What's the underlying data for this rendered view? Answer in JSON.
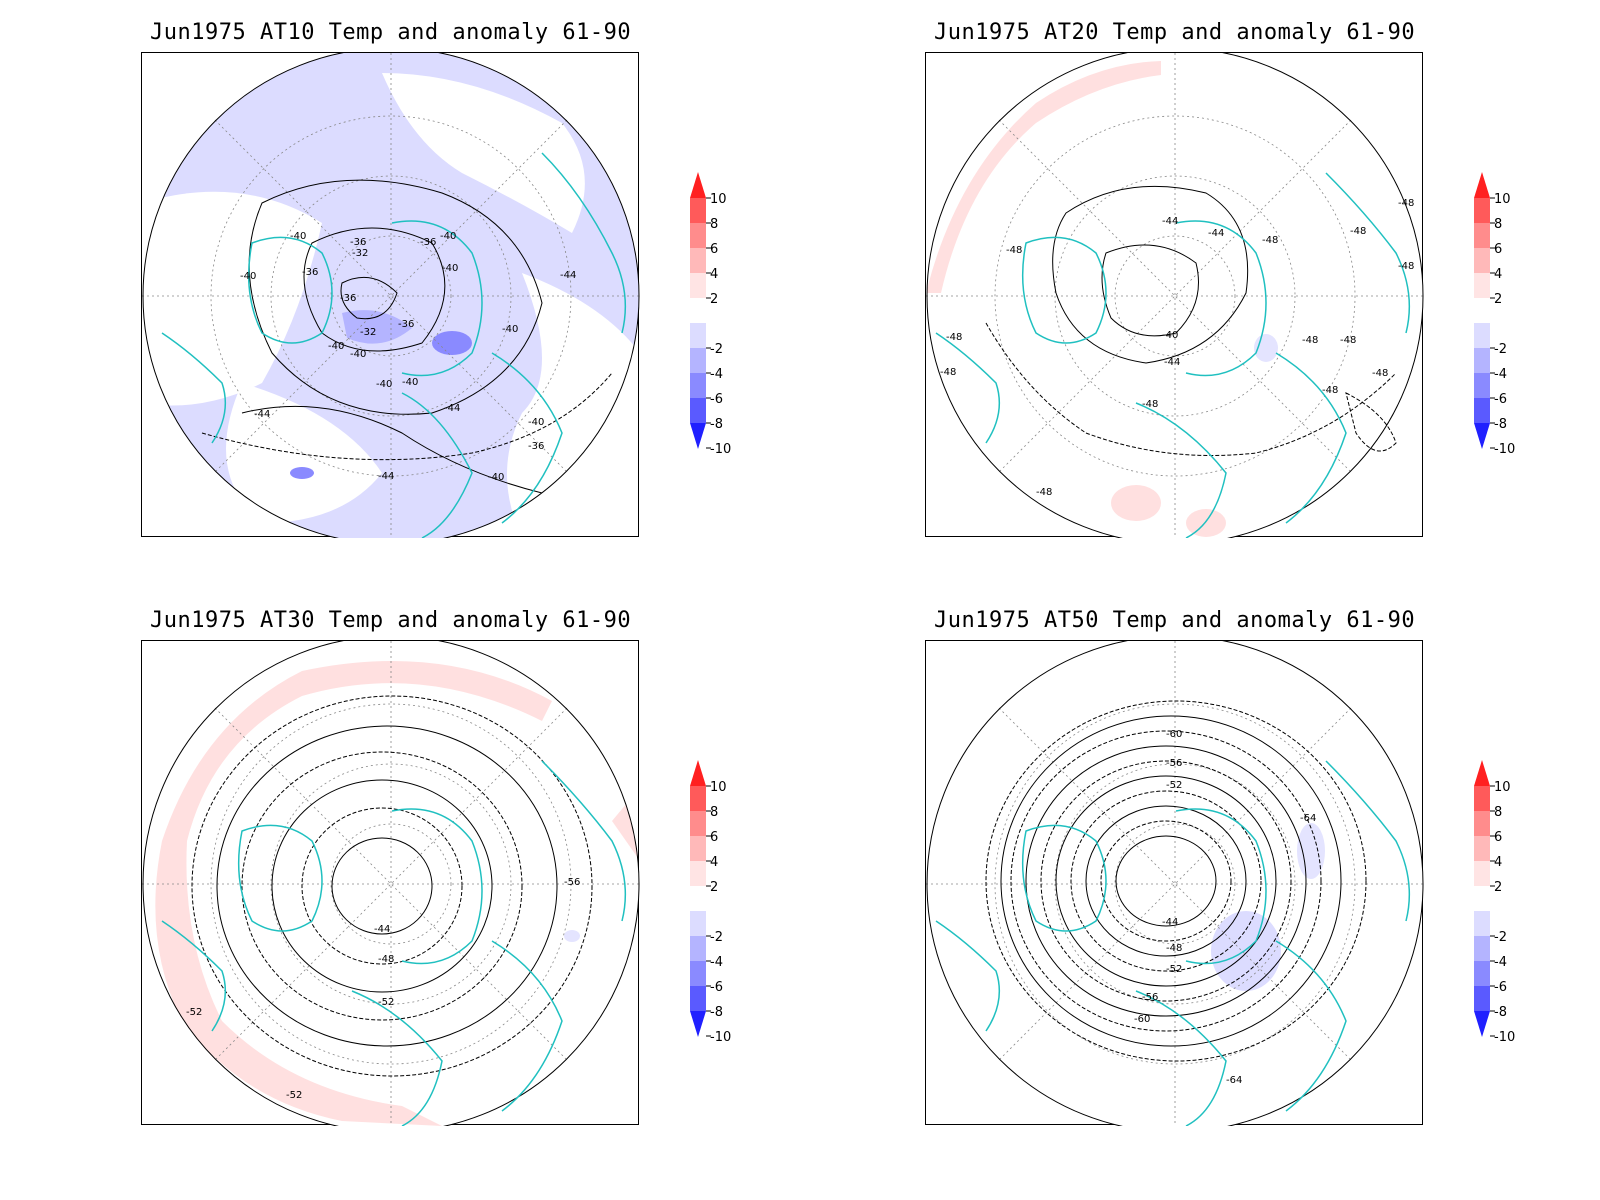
{
  "panels": [
    {
      "title": "Jun1975 AT10 Temp and anomaly 61-90",
      "contour_labels": [
        "-40",
        "-36",
        "-32",
        "-36",
        "-40",
        "-40",
        "-36",
        "-40",
        "-36",
        "-32",
        "-36",
        "-40",
        "-40",
        "-40",
        "-40",
        "-44",
        "-40",
        "-44",
        "-40",
        "-36",
        "-44",
        "-40",
        "-44"
      ]
    },
    {
      "title": "Jun1975 AT20 Temp and anomaly 61-90",
      "contour_labels": [
        "-44",
        "-44",
        "-48",
        "-48",
        "-48",
        "-48",
        "-48",
        "-40",
        "-44",
        "-48",
        "-48",
        "-48",
        "-48",
        "-48",
        "-48",
        "-48",
        "-48"
      ]
    },
    {
      "title": "Jun1975 AT30 Temp and anomaly 61-90",
      "contour_labels": [
        "-56",
        "-44",
        "-48",
        "-52",
        "-52",
        "-52"
      ]
    },
    {
      "title": "Jun1975 AT50 Temp and anomaly 61-90",
      "contour_labels": [
        "-60",
        "-56",
        "-52",
        "-64",
        "-44",
        "-48",
        "-52",
        "-56",
        "-60",
        "-64"
      ]
    }
  ],
  "colorbar": {
    "labels": [
      "10",
      "8",
      "6",
      "4",
      "2",
      "-2",
      "-4",
      "-6",
      "-8",
      "-10"
    ],
    "colors": [
      "#ff2020",
      "#ff5a5a",
      "#ff8c8c",
      "#ffb9b9",
      "#ffe4e4",
      "#ffffff",
      "#dcdcff",
      "#b4b4ff",
      "#8a8aff",
      "#5a5aff",
      "#2020ff"
    ]
  },
  "colors": {
    "coastline": "#20c0c0",
    "contour": "#000000",
    "grid": "#888888"
  }
}
